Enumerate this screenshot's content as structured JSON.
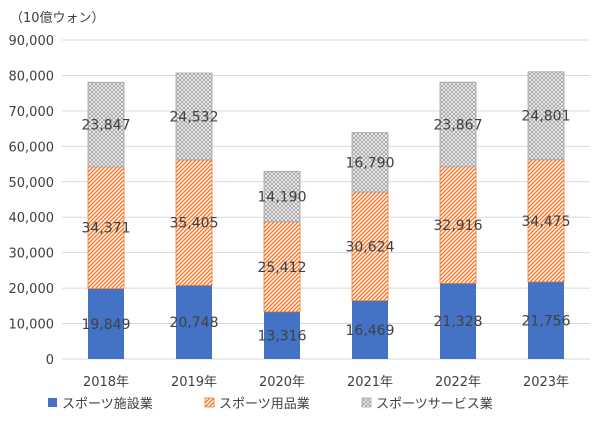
{
  "chart_data": {
    "type": "bar",
    "stacked": true,
    "unit_label": "（10億ウォン）",
    "categories": [
      "2018年",
      "2019年",
      "2020年",
      "2021年",
      "2022年",
      "2023年"
    ],
    "series": [
      {
        "name": "スポーツ施設業",
        "values": [
          19849,
          20748,
          13316,
          16469,
          21328,
          21756
        ],
        "labels": [
          "19,849",
          "20,748",
          "13,316",
          "16,469",
          "21,328",
          "21,756"
        ],
        "color": "#4472c4",
        "pattern": "solid"
      },
      {
        "name": "スポーツ用品業",
        "values": [
          34371,
          35405,
          25412,
          30624,
          32916,
          34475
        ],
        "labels": [
          "34,371",
          "35,405",
          "25,412",
          "30,624",
          "32,916",
          "34,475"
        ],
        "color": "#ed7d31",
        "pattern": "diagonal"
      },
      {
        "name": "スポーツサービス業",
        "values": [
          23847,
          24532,
          14190,
          16790,
          23867,
          24801
        ],
        "labels": [
          "23,847",
          "24,532",
          "14,190",
          "16,790",
          "23,867",
          "24,801"
        ],
        "color": "#a5a5a5",
        "pattern": "crosshatch"
      }
    ],
    "ylim": [
      0,
      90000
    ],
    "yticks": [
      "0",
      "10,000",
      "20,000",
      "30,000",
      "40,000",
      "50,000",
      "60,000",
      "70,000",
      "80,000",
      "90,000"
    ],
    "ytick_values": [
      0,
      10000,
      20000,
      30000,
      40000,
      50000,
      60000,
      70000,
      80000,
      90000
    ],
    "grid": true,
    "legend_position": "bottom"
  }
}
